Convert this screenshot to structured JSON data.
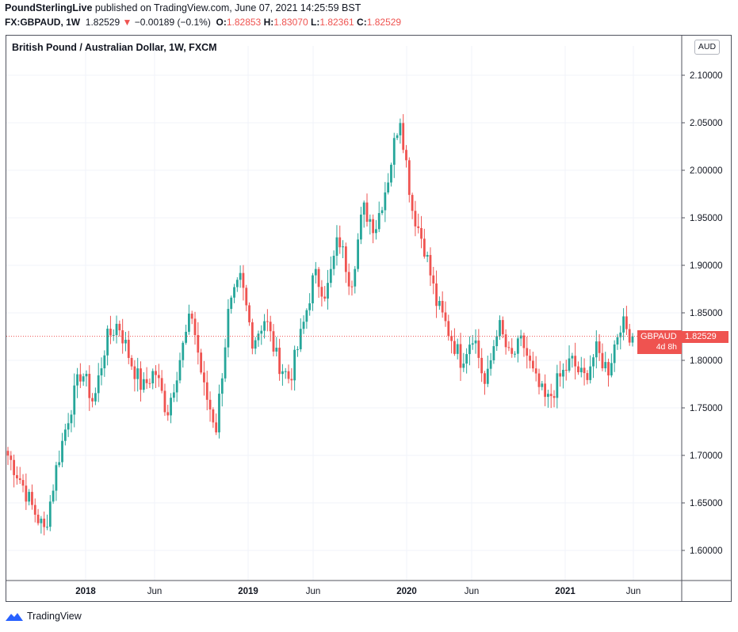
{
  "header": {
    "author": "PoundSterlingLive",
    "published_text": " published on TradingView.com, June 07, 2021 14:25:59 BST",
    "symbol": "FX:GBPAUD, 1W",
    "last_price": "1.82529",
    "change_arrow": "▼",
    "change_text": "−0.00189 (−0.1%)",
    "o_label": "O:",
    "o_value": "1.82853",
    "h_label": "H:",
    "h_value": "1.83070",
    "l_label": "L:",
    "l_value": "1.82361",
    "c_label": "C:",
    "c_value": "1.82529"
  },
  "chart_title": "British Pound / Australian Dollar, 1W, FXCM",
  "currency_badge": "AUD",
  "price_tag": {
    "symbol": "GBPAUD",
    "price": "1.82529",
    "countdown": "4d 8h"
  },
  "footer": {
    "brand": "TradingView",
    "logo_icon": "tradingview-logo-icon"
  },
  "colors": {
    "up": "#26a69a",
    "down": "#ef5350",
    "grid": "#f0f3fa",
    "axis": "#50535e"
  },
  "chart_data": {
    "type": "candlestick",
    "title": "British Pound / Australian Dollar, 1W, FXCM",
    "y_axis_position": "right",
    "y_ticks": [
      "2.10000",
      "2.05000",
      "2.00000",
      "1.95000",
      "1.90000",
      "1.85000",
      "1.80000",
      "1.75000",
      "1.70000",
      "1.65000",
      "1.60000"
    ],
    "x_ticks": [
      "2018",
      "Jun",
      "2019",
      "Jun",
      "2020",
      "Jun",
      "2021",
      "Jun"
    ],
    "ylim": [
      1.57,
      2.12
    ],
    "last_price": 1.82529,
    "anchors": [
      [
        1.7,
        1.69
      ],
      [
        1.675,
        1.675
      ],
      [
        1.645,
        1.645
      ],
      [
        1.62,
        1.62
      ],
      [
        1.69,
        1.69
      ],
      [
        1.745,
        1.745
      ],
      [
        1.79,
        1.79
      ],
      [
        1.755,
        1.755
      ],
      [
        1.82,
        1.82
      ],
      [
        1.84,
        1.84
      ],
      [
        1.8,
        1.8
      ],
      [
        1.77,
        1.77
      ],
      [
        1.79,
        1.79
      ],
      [
        1.745,
        1.745
      ],
      [
        1.8,
        1.8
      ],
      [
        1.85,
        1.85
      ],
      [
        1.77,
        1.77
      ],
      [
        1.73,
        1.73
      ],
      [
        1.85,
        1.85
      ],
      [
        1.885,
        1.885
      ],
      [
        1.82,
        1.82
      ],
      [
        1.845,
        1.845
      ],
      [
        1.8,
        1.8
      ],
      [
        1.78,
        1.78
      ],
      [
        1.83,
        1.83
      ],
      [
        1.89,
        1.89
      ],
      [
        1.87,
        1.87
      ],
      [
        1.93,
        1.93
      ],
      [
        1.88,
        1.88
      ],
      [
        1.96,
        1.96
      ],
      [
        1.94,
        1.94
      ],
      [
        1.99,
        1.99
      ],
      [
        2.06,
        2.06
      ],
      [
        1.96,
        1.96
      ],
      [
        1.92,
        1.92
      ],
      [
        1.86,
        1.86
      ],
      [
        1.83,
        1.83
      ],
      [
        1.8,
        1.8
      ],
      [
        1.83,
        1.83
      ],
      [
        1.77,
        1.77
      ],
      [
        1.84,
        1.84
      ],
      [
        1.8,
        1.8
      ],
      [
        1.82,
        1.82
      ],
      [
        1.78,
        1.78
      ],
      [
        1.755,
        1.755
      ],
      [
        1.78,
        1.78
      ],
      [
        1.8,
        1.8
      ],
      [
        1.78,
        1.78
      ],
      [
        1.81,
        1.81
      ],
      [
        1.79,
        1.79
      ],
      [
        1.84,
        1.84
      ],
      [
        1.82529,
        1.82529
      ]
    ]
  }
}
